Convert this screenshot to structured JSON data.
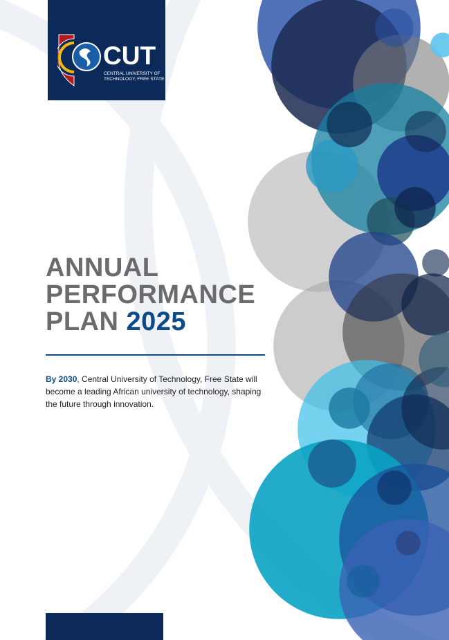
{
  "logo": {
    "acronym": "CUT",
    "line1": "CENTRAL UNIVERSITY OF",
    "line2": "TECHNOLOGY, FREE STATE"
  },
  "title": {
    "line1": "ANNUAL",
    "line2": "PERFORMANCE",
    "line3_prefix": "PLAN",
    "year": "2025"
  },
  "vision": {
    "lead": "By 2030",
    "text": ", Central University of Technology, Free State will become a leading African university of technology, shaping the future through innovation."
  },
  "colors": {
    "navy": "#0b2a5a",
    "blue": "#0d4a87",
    "title_gray": "#6a6b6d"
  }
}
